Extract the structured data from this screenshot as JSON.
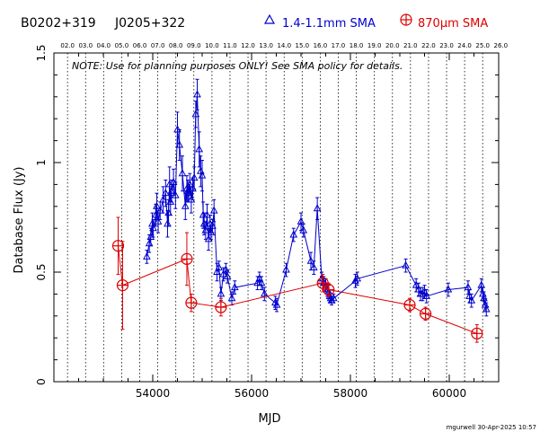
{
  "chart_data": {
    "type": "scatter",
    "source_name": "B0202+319",
    "alias_name": "J0205+322",
    "xlabel": "MJD",
    "ylabel": "Database Flux (Jy)",
    "xlim": [
      52000,
      61000
    ],
    "ylim": [
      0,
      1.5
    ],
    "x_ticks": [
      54000,
      56000,
      58000,
      60000
    ],
    "x_tick_labels": [
      "54000",
      "56000",
      "58000",
      "60000"
    ],
    "y_ticks": [
      0,
      0.5,
      1,
      1.5
    ],
    "y_tick_labels": [
      "0",
      "0.5",
      "1",
      "1.5"
    ],
    "top_axis_labels": [
      "02.0",
      "03.0",
      "04.0",
      "05.0",
      "06.0",
      "07.0",
      "08.0",
      "09.0",
      "10.0",
      "11.0",
      "12.0",
      "13.0",
      "14.0",
      "15.0",
      "16.0",
      "17.0",
      "18.0",
      "19.0",
      "20.0",
      "21.0",
      "22.0",
      "23.0",
      "24.0",
      "25.0",
      "26.0"
    ],
    "top_axis_positions_mjd": [
      52276,
      52641,
      53006,
      53371,
      53737,
      54102,
      54467,
      54832,
      55198,
      55563,
      55928,
      56293,
      56659,
      57024,
      57389,
      57754,
      58120,
      58485,
      58850,
      59215,
      59581,
      59946,
      60311,
      60676,
      61042
    ],
    "note": "NOTE: Use for planning purposes ONLY!  See SMA policy for details.",
    "footer": "mgurwell 30-Apr-2025 10:57",
    "grid": "vertical dotted lines at year boundaries",
    "legend_position": "top",
    "series": [
      {
        "name": "1.4-1.1mm SMA",
        "marker": "triangle",
        "color": "#0000cc",
        "points": [
          [
            53880,
            0.57,
            0.03
          ],
          [
            53930,
            0.63,
            0.04
          ],
          [
            53960,
            0.66,
            0.04
          ],
          [
            53990,
            0.72,
            0.05
          ],
          [
            54010,
            0.7,
            0.04
          ],
          [
            54060,
            0.76,
            0.05
          ],
          [
            54080,
            0.8,
            0.06
          ],
          [
            54110,
            0.73,
            0.05
          ],
          [
            54150,
            0.78,
            0.04
          ],
          [
            54210,
            0.83,
            0.06
          ],
          [
            54260,
            0.86,
            0.06
          ],
          [
            54300,
            0.72,
            0.06
          ],
          [
            54320,
            0.77,
            0.06
          ],
          [
            54340,
            0.9,
            0.08
          ],
          [
            54360,
            0.82,
            0.06
          ],
          [
            54380,
            0.87,
            0.05
          ],
          [
            54420,
            0.91,
            0.06
          ],
          [
            54460,
            0.85,
            0.06
          ],
          [
            54500,
            1.15,
            0.08
          ],
          [
            54540,
            1.08,
            0.07
          ],
          [
            54600,
            0.95,
            0.08
          ],
          [
            54660,
            0.8,
            0.06
          ],
          [
            54690,
            0.88,
            0.06
          ],
          [
            54710,
            0.87,
            0.05
          ],
          [
            54730,
            0.86,
            0.04
          ],
          [
            54750,
            0.9,
            0.05
          ],
          [
            54780,
            0.83,
            0.06
          ],
          [
            54810,
            0.88,
            0.05
          ],
          [
            54840,
            0.93,
            0.05
          ],
          [
            54870,
            1.22,
            0.06
          ],
          [
            54900,
            1.31,
            0.07
          ],
          [
            54940,
            1.06,
            0.08
          ],
          [
            54970,
            0.96,
            0.07
          ],
          [
            55000,
            0.94,
            0.07
          ],
          [
            55020,
            0.76,
            0.06
          ],
          [
            55040,
            0.72,
            0.05
          ],
          [
            55070,
            0.69,
            0.04
          ],
          [
            55100,
            0.76,
            0.05
          ],
          [
            55130,
            0.65,
            0.05
          ],
          [
            55160,
            0.72,
            0.04
          ],
          [
            55180,
            0.68,
            0.03
          ],
          [
            55210,
            0.71,
            0.03
          ],
          [
            55240,
            0.78,
            0.05
          ],
          [
            55300,
            0.5,
            0.04
          ],
          [
            55340,
            0.52,
            0.03
          ],
          [
            55380,
            0.4,
            0.03
          ],
          [
            55430,
            0.49,
            0.03
          ],
          [
            55480,
            0.51,
            0.03
          ],
          [
            55510,
            0.48,
            0.03
          ],
          [
            55600,
            0.38,
            0.03
          ],
          [
            55660,
            0.43,
            0.03
          ],
          [
            56120,
            0.45,
            0.03
          ],
          [
            56160,
            0.47,
            0.03
          ],
          [
            56200,
            0.45,
            0.03
          ],
          [
            56260,
            0.4,
            0.03
          ],
          [
            56480,
            0.36,
            0.03
          ],
          [
            56510,
            0.35,
            0.03
          ],
          [
            56700,
            0.51,
            0.03
          ],
          [
            56850,
            0.67,
            0.03
          ],
          [
            57000,
            0.73,
            0.04
          ],
          [
            57050,
            0.69,
            0.03
          ],
          [
            57200,
            0.55,
            0.04
          ],
          [
            57260,
            0.52,
            0.03
          ],
          [
            57330,
            0.79,
            0.05
          ],
          [
            57420,
            0.47,
            0.03
          ],
          [
            57460,
            0.45,
            0.03
          ],
          [
            57500,
            0.44,
            0.03
          ],
          [
            57530,
            0.42,
            0.03
          ],
          [
            57560,
            0.41,
            0.03
          ],
          [
            57580,
            0.39,
            0.03
          ],
          [
            57600,
            0.38,
            0.02
          ],
          [
            57620,
            0.37,
            0.02
          ],
          [
            57660,
            0.38,
            0.02
          ],
          [
            58100,
            0.46,
            0.03
          ],
          [
            58140,
            0.47,
            0.03
          ],
          [
            59120,
            0.53,
            0.03
          ],
          [
            59330,
            0.44,
            0.03
          ],
          [
            59380,
            0.42,
            0.03
          ],
          [
            59420,
            0.4,
            0.03
          ],
          [
            59460,
            0.4,
            0.03
          ],
          [
            59500,
            0.41,
            0.03
          ],
          [
            59540,
            0.39,
            0.03
          ],
          [
            59980,
            0.42,
            0.03
          ],
          [
            60380,
            0.43,
            0.03
          ],
          [
            60410,
            0.39,
            0.03
          ],
          [
            60450,
            0.37,
            0.03
          ],
          [
            60650,
            0.44,
            0.03
          ],
          [
            60680,
            0.4,
            0.03
          ],
          [
            60700,
            0.38,
            0.03
          ],
          [
            60730,
            0.35,
            0.03
          ],
          [
            60750,
            0.33,
            0.03
          ]
        ]
      },
      {
        "name": "870μm SMA",
        "marker": "circle-plus",
        "color": "#dd0000",
        "points": [
          [
            53300,
            0.62,
            0.13
          ],
          [
            53390,
            0.44,
            0.2
          ],
          [
            54690,
            0.56,
            0.12
          ],
          [
            54780,
            0.36,
            0.04
          ],
          [
            55380,
            0.34,
            0.04
          ],
          [
            57440,
            0.45,
            0.04
          ],
          [
            57560,
            0.42,
            0.03
          ],
          [
            59200,
            0.35,
            0.03
          ],
          [
            59520,
            0.31,
            0.03
          ],
          [
            60560,
            0.22,
            0.04
          ]
        ]
      }
    ]
  }
}
